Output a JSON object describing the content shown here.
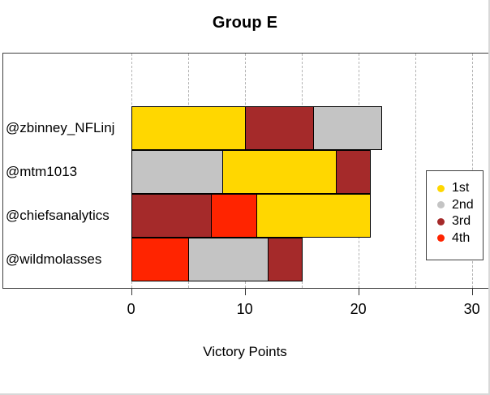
{
  "window": {
    "background": "#FFFFFF",
    "edge_border_color": "#D8D8D8"
  },
  "colors": {
    "1st": "#FFD700",
    "2nd": "#C4C4C4",
    "3rd": "#A52A2A",
    "4th": "#FF2400",
    "bar_border": "#000000",
    "plot_border": "#404040",
    "gridline": "#B3B3B3",
    "tick": "#333333",
    "text": "#000000"
  },
  "chart_data": {
    "type": "bar",
    "orientation": "horizontal",
    "stacked": true,
    "title": "Group E",
    "xlabel": "Victory Points",
    "ylabel": "",
    "xlim": [
      0,
      30
    ],
    "xticks": [
      0,
      10,
      20,
      30
    ],
    "gridline_positions": [
      0,
      5,
      10,
      15,
      20,
      25,
      30
    ],
    "grid": "dashed-vertical",
    "legend_position": "right-inside",
    "categories": [
      "@zbinney_NFLinj",
      "@mtm1013",
      "@chiefsanalytics",
      "@wildmolasses"
    ],
    "rows": [
      {
        "category": "@zbinney_NFLinj",
        "segments": [
          {
            "place": "1st",
            "value": 10
          },
          {
            "place": "3rd",
            "value": 6
          },
          {
            "place": "2nd",
            "value": 6
          }
        ],
        "total": 22
      },
      {
        "category": "@mtm1013",
        "segments": [
          {
            "place": "2nd",
            "value": 8
          },
          {
            "place": "1st",
            "value": 10
          },
          {
            "place": "3rd",
            "value": 3
          }
        ],
        "total": 21
      },
      {
        "category": "@chiefsanalytics",
        "segments": [
          {
            "place": "3rd",
            "value": 7
          },
          {
            "place": "4th",
            "value": 4
          },
          {
            "place": "1st",
            "value": 10
          }
        ],
        "total": 21
      },
      {
        "category": "@wildmolasses",
        "segments": [
          {
            "place": "4th",
            "value": 5
          },
          {
            "place": "2nd",
            "value": 7
          },
          {
            "place": "3rd",
            "value": 3
          }
        ],
        "total": 15
      }
    ],
    "legend": [
      {
        "label": "1st",
        "color": "#FFD700"
      },
      {
        "label": "2nd",
        "color": "#C4C4C4"
      },
      {
        "label": "3rd",
        "color": "#A52A2A"
      },
      {
        "label": "4th",
        "color": "#FF2400"
      }
    ]
  }
}
